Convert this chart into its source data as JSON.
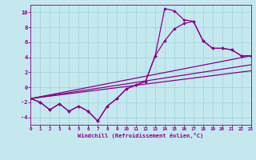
{
  "bg_color": "#c5e8ef",
  "line_color": "#880088",
  "grid_color": "#a8d8de",
  "xlabel": "Windchill (Refroidissement éolien,°C)",
  "xlabel_color": "#880088",
  "tick_color": "#880088",
  "ylim": [
    -5,
    11
  ],
  "xlim": [
    0,
    23
  ],
  "yticks": [
    -4,
    -2,
    0,
    2,
    4,
    6,
    8,
    10
  ],
  "xticks": [
    0,
    1,
    2,
    3,
    4,
    5,
    6,
    7,
    8,
    9,
    10,
    11,
    12,
    13,
    14,
    15,
    16,
    17,
    18,
    19,
    20,
    21,
    22,
    23
  ],
  "series_noisy_x": [
    0,
    1,
    2,
    3,
    4,
    5,
    6,
    7,
    8,
    9,
    10,
    11,
    12,
    13,
    14,
    15,
    16,
    17,
    18,
    19,
    20,
    21,
    22,
    23
  ],
  "series_noisy_y": [
    -1.5,
    -2.0,
    -3.0,
    -2.2,
    -3.2,
    -2.5,
    -3.2,
    -4.5,
    -2.5,
    -1.5,
    -0.2,
    0.3,
    0.8,
    4.2,
    6.2,
    7.8,
    8.5,
    8.8,
    6.2,
    5.2,
    5.2,
    5.0,
    4.2,
    4.2
  ],
  "series_noisy2_x": [
    0,
    1,
    2,
    3,
    4,
    5,
    6,
    7,
    8,
    9,
    10,
    11,
    12,
    13,
    14,
    15,
    16,
    17,
    18,
    19,
    20,
    21,
    22,
    23
  ],
  "series_noisy2_y": [
    -1.5,
    -2.0,
    -3.0,
    -2.2,
    -3.2,
    -2.5,
    -3.2,
    -4.5,
    -2.5,
    -1.5,
    -0.2,
    0.3,
    0.8,
    4.2,
    10.5,
    10.2,
    9.0,
    8.8,
    6.2,
    5.2,
    5.2,
    5.0,
    4.2,
    4.2
  ],
  "series_line1_x": [
    0,
    23
  ],
  "series_line1_y": [
    -1.5,
    4.2
  ],
  "series_line2_x": [
    0,
    23
  ],
  "series_line2_y": [
    -1.5,
    3.0
  ],
  "series_line3_x": [
    0,
    23
  ],
  "series_line3_y": [
    -1.5,
    2.2
  ]
}
